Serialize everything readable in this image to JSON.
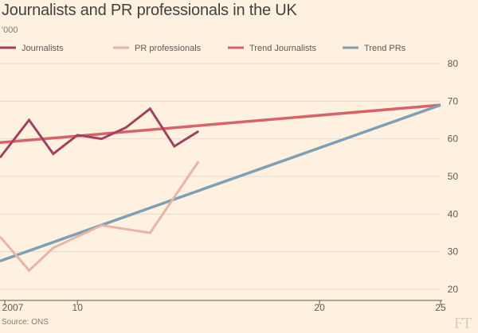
{
  "chart_data": {
    "type": "line",
    "title": "Journalists and PR professionals in the UK",
    "ylabel": "'000",
    "source": "Source: ONS",
    "logo": "FT",
    "xlim": [
      2006.8,
      2025
    ],
    "ylim": [
      20,
      80
    ],
    "x_ticks": [
      {
        "value": 2007,
        "label": "2007"
      },
      {
        "value": 2010,
        "label": "10"
      },
      {
        "value": 2020,
        "label": "20"
      },
      {
        "value": 2025,
        "label": "25"
      }
    ],
    "y_ticks": [
      20,
      30,
      40,
      50,
      60,
      70,
      80
    ],
    "series": [
      {
        "name": "Journalists",
        "key": "journalists",
        "color": "#a3405e",
        "width": 3,
        "points": [
          [
            2006.8,
            55
          ],
          [
            2008,
            65
          ],
          [
            2009,
            56
          ],
          [
            2010,
            61
          ],
          [
            2011,
            60
          ],
          [
            2012,
            63
          ],
          [
            2013,
            68
          ],
          [
            2014,
            58
          ],
          [
            2015,
            62
          ]
        ]
      },
      {
        "name": "PR professionals",
        "key": "pr",
        "color": "#e8b4a6",
        "width": 3,
        "points": [
          [
            2006.8,
            34
          ],
          [
            2008,
            25
          ],
          [
            2009,
            31
          ],
          [
            2010,
            34
          ],
          [
            2011,
            37
          ],
          [
            2012,
            36
          ],
          [
            2013,
            35
          ],
          [
            2015,
            54
          ]
        ]
      },
      {
        "name": "Trend Journalists",
        "key": "trend-journalists",
        "color": "#d76368",
        "width": 3.5,
        "points": [
          [
            2006.8,
            59
          ],
          [
            2025,
            69
          ]
        ]
      },
      {
        "name": "Trend PRs",
        "key": "trend-prs",
        "color": "#7ea0b4",
        "width": 3.5,
        "points": [
          [
            2006.8,
            27.5
          ],
          [
            2025,
            69
          ]
        ]
      }
    ]
  }
}
